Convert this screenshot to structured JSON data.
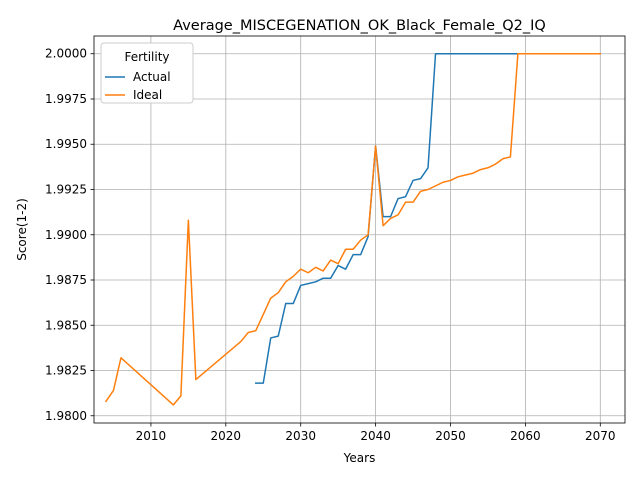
{
  "chart_data": {
    "type": "line",
    "title": "Average_MISCEGENATION_OK_Black_Female_Q2_IQ",
    "xlabel": "Years",
    "ylabel": "Score(1-2)",
    "xlim": [
      2002.4,
      2073.3
    ],
    "ylim": [
      1.9796,
      2.00098
    ],
    "xticks": [
      2010,
      2020,
      2030,
      2040,
      2050,
      2060,
      2070
    ],
    "yticks": [
      1.98,
      1.9825,
      1.985,
      1.9875,
      1.99,
      1.9925,
      1.995,
      1.9975,
      2.0
    ],
    "ytick_labels": [
      "1.9800",
      "1.9825",
      "1.9850",
      "1.9875",
      "1.9900",
      "1.9925",
      "1.9950",
      "1.9975",
      "2.0000"
    ],
    "grid": true,
    "legend": {
      "title": "Fertility",
      "placement": "top-left"
    },
    "series": [
      {
        "name": "Actual",
        "color": "#1f77b4",
        "x": [
          2024,
          2025,
          2026,
          2027,
          2028,
          2029,
          2030,
          2031,
          2032,
          2033,
          2034,
          2035,
          2036,
          2037,
          2038,
          2039,
          2040,
          2041,
          2042,
          2043,
          2044,
          2045,
          2046,
          2047,
          2048,
          2049,
          2050,
          2051,
          2052,
          2053,
          2054,
          2055,
          2056,
          2057,
          2058,
          2059,
          2060,
          2061,
          2062,
          2063,
          2064,
          2065,
          2066,
          2067,
          2068,
          2069,
          2070
        ],
        "y": [
          1.9818,
          1.9818,
          1.9843,
          1.9844,
          1.9862,
          1.9862,
          1.9872,
          1.9873,
          1.9874,
          1.9876,
          1.9876,
          1.9883,
          1.9881,
          1.9889,
          1.9889,
          1.9899,
          1.9949,
          1.991,
          1.991,
          1.992,
          1.9921,
          1.993,
          1.9931,
          1.9937,
          2.0,
          2.0,
          2.0,
          2.0,
          2.0,
          2.0,
          2.0,
          2.0,
          2.0,
          2.0,
          2.0,
          2.0,
          2.0,
          2.0,
          2.0,
          2.0,
          2.0,
          2.0,
          2.0,
          2.0,
          2.0,
          2.0,
          2.0
        ]
      },
      {
        "name": "Ideal",
        "color": "#ff7f0e",
        "x": [
          2004,
          2005,
          2006,
          2013,
          2014,
          2015,
          2016,
          2022,
          2023,
          2024,
          2025,
          2026,
          2027,
          2028,
          2029,
          2030,
          2031,
          2032,
          2033,
          2034,
          2035,
          2036,
          2037,
          2038,
          2039,
          2040,
          2041,
          2042,
          2043,
          2044,
          2045,
          2046,
          2047,
          2048,
          2049,
          2050,
          2051,
          2052,
          2053,
          2054,
          2055,
          2056,
          2057,
          2058,
          2059,
          2060,
          2061,
          2062,
          2063,
          2064,
          2065,
          2066,
          2067,
          2068,
          2069,
          2070
        ],
        "y": [
          1.9808,
          1.9814,
          1.9832,
          1.9806,
          1.9811,
          1.9908,
          1.982,
          1.9841,
          1.9846,
          1.9847,
          1.9856,
          1.9865,
          1.9868,
          1.9874,
          1.9877,
          1.9881,
          1.9879,
          1.9882,
          1.988,
          1.9886,
          1.9884,
          1.9892,
          1.9892,
          1.9897,
          1.99,
          1.9949,
          1.9905,
          1.9909,
          1.9911,
          1.9918,
          1.9918,
          1.9924,
          1.9925,
          1.9927,
          1.9929,
          1.993,
          1.9932,
          1.9933,
          1.9934,
          1.9936,
          1.9937,
          1.9939,
          1.9942,
          1.9943,
          2.0,
          2.0,
          2.0,
          2.0,
          2.0,
          2.0,
          2.0,
          2.0,
          2.0,
          2.0,
          2.0,
          2.0
        ]
      }
    ]
  }
}
